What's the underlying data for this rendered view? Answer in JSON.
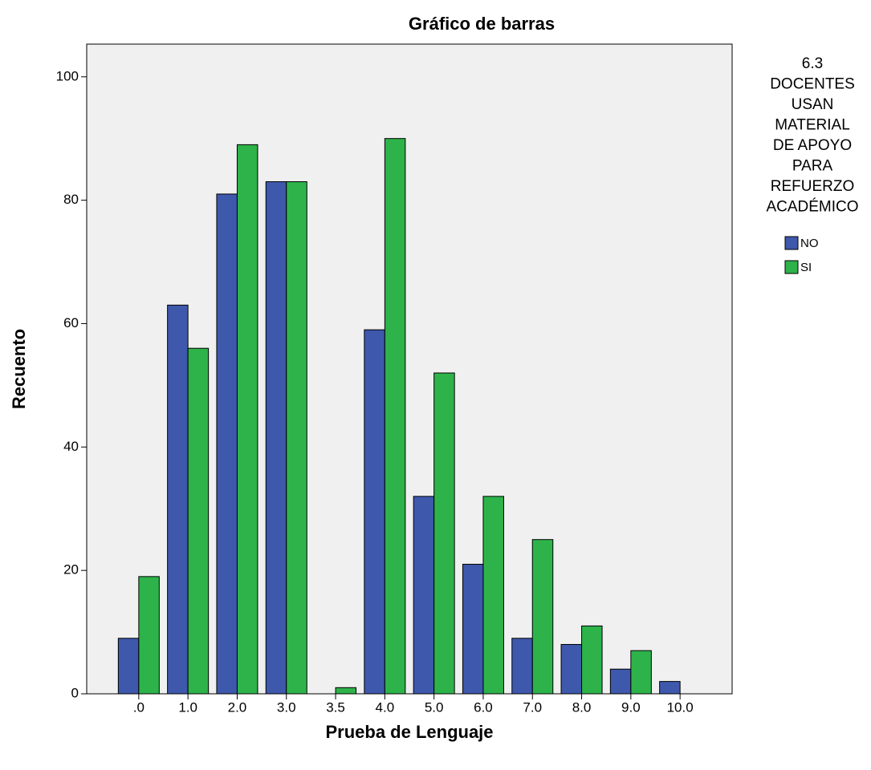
{
  "chart_data": {
    "type": "bar",
    "title": "Gráfico de barras",
    "x_label": "Prueba de Lenguaje",
    "y_label": "Recuento",
    "legend_title": [
      "6.3",
      "DOCENTES",
      "USAN",
      "MATERIAL",
      "DE APOYO",
      "PARA",
      "REFUERZO",
      "ACADÉMICO"
    ],
    "categories": [
      ".0",
      "1.0",
      "2.0",
      "3.0",
      "3.5",
      "4.0",
      "5.0",
      "6.0",
      "7.0",
      "8.0",
      "9.0",
      "10.0"
    ],
    "series": [
      {
        "name": "NO",
        "color": "#3e58ac",
        "values": [
          9,
          63,
          81,
          83,
          0,
          59,
          32,
          21,
          9,
          8,
          4,
          2
        ]
      },
      {
        "name": "SI",
        "color": "#2db34a",
        "values": [
          19,
          56,
          89,
          83,
          1,
          90,
          52,
          32,
          25,
          11,
          7,
          0
        ]
      }
    ],
    "ylim": [
      0,
      105.3
    ],
    "yticks": [
      0,
      20,
      40,
      60,
      80,
      100
    ],
    "legend": "right"
  }
}
